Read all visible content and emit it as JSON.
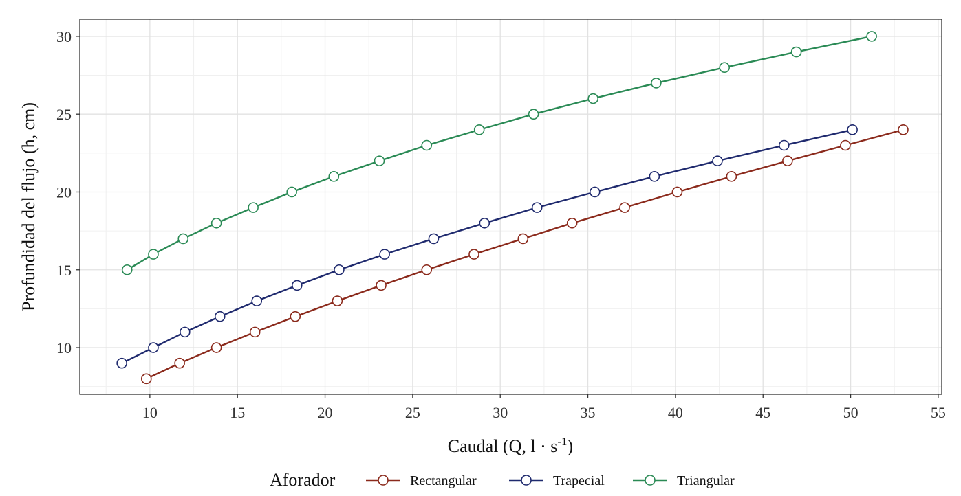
{
  "chart_data": {
    "type": "line",
    "xlabel": "Caudal (Q, l·s⁻¹)",
    "xlabel_parts": {
      "main": "Caudal (Q, l",
      "dot": " · ",
      "unit": "s",
      "sup": "-1",
      "close": ")"
    },
    "ylabel": "Profundidad del flujo (h, cm)",
    "xlim": [
      6.0,
      55.2
    ],
    "ylim": [
      7.0,
      31.1
    ],
    "x_ticks": [
      10,
      15,
      20,
      25,
      30,
      35,
      40,
      45,
      50,
      55
    ],
    "y_ticks": [
      10,
      15,
      20,
      25,
      30
    ],
    "grid": true,
    "legend": {
      "title": "Aforador",
      "position": "bottom"
    },
    "series": [
      {
        "name": "Rectangular",
        "color": "#8b2a1c",
        "x": [
          9.8,
          11.7,
          13.8,
          16.0,
          18.3,
          20.7,
          23.2,
          25.8,
          28.5,
          31.3,
          34.1,
          37.1,
          40.1,
          43.2,
          46.4,
          49.7,
          53.0
        ],
        "y": [
          8,
          9,
          10,
          11,
          12,
          13,
          14,
          15,
          16,
          17,
          18,
          19,
          20,
          21,
          22,
          23,
          24
        ]
      },
      {
        "name": "Trapecial",
        "color": "#1f2a6e",
        "x": [
          8.4,
          10.2,
          12.0,
          14.0,
          16.1,
          18.4,
          20.8,
          23.4,
          26.2,
          29.1,
          32.1,
          35.4,
          38.8,
          42.4,
          46.2,
          50.1
        ],
        "y": [
          9,
          10,
          11,
          12,
          13,
          14,
          15,
          16,
          17,
          18,
          19,
          20,
          21,
          22,
          23,
          24
        ]
      },
      {
        "name": "Triangular",
        "color": "#2a8a55",
        "x": [
          8.7,
          10.2,
          11.9,
          13.8,
          15.9,
          18.1,
          20.5,
          23.1,
          25.8,
          28.8,
          31.9,
          35.3,
          38.9,
          42.8,
          46.9,
          51.2
        ],
        "y": [
          15,
          16,
          17,
          18,
          19,
          20,
          21,
          22,
          23,
          24,
          25,
          26,
          27,
          28,
          29,
          30
        ]
      }
    ]
  }
}
